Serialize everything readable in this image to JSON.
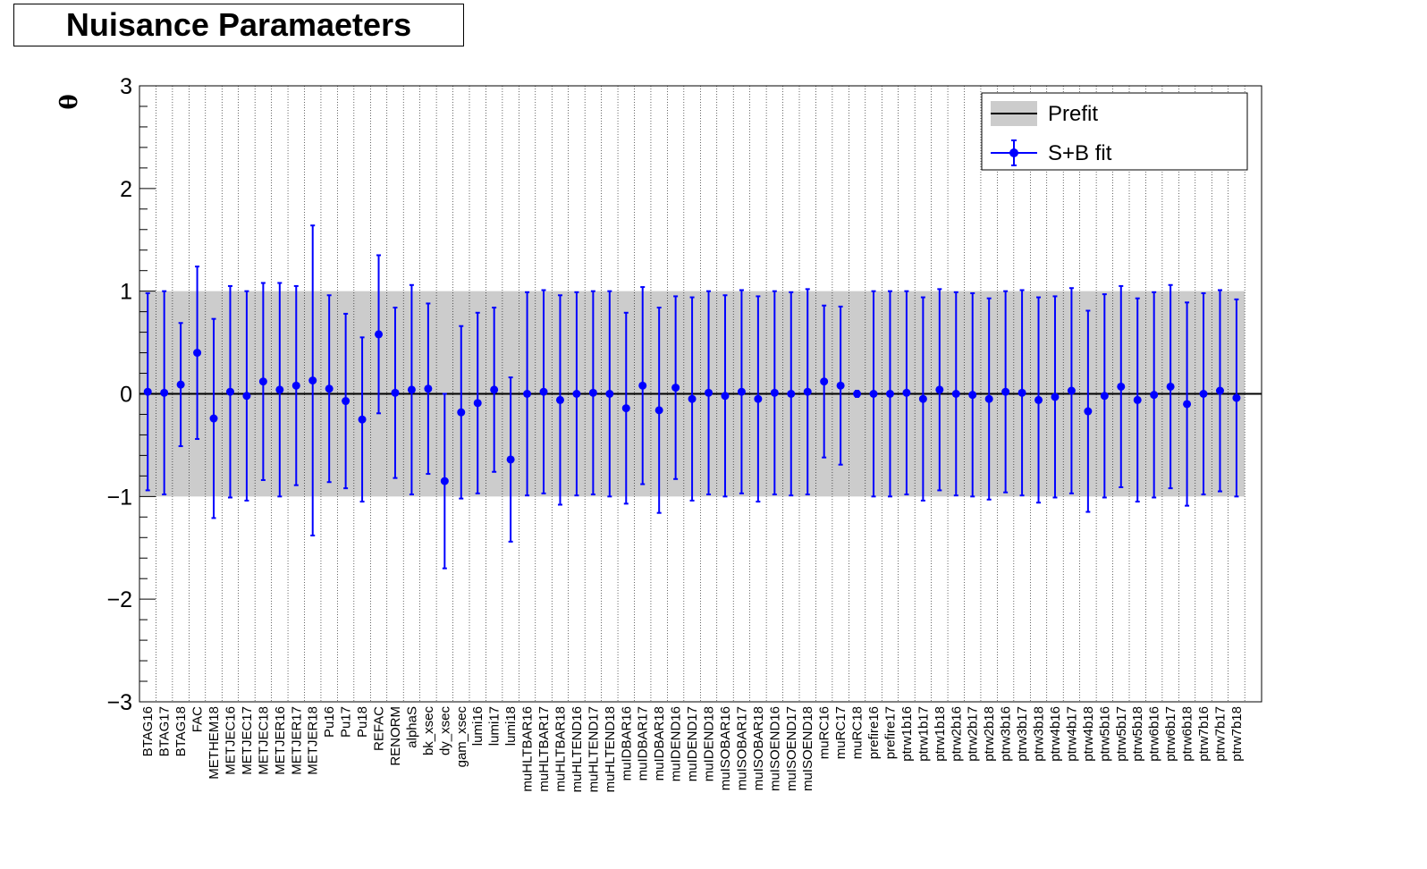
{
  "chart_data": {
    "type": "scatter",
    "title": "Nuisance Paramaeters",
    "ylabel": "θ",
    "xlabel": "",
    "ylim": [
      -3,
      3
    ],
    "yticks": [
      "−3",
      "−2",
      "−1",
      "0",
      "1",
      "2",
      "3"
    ],
    "grid": "vertical dotted",
    "legend": {
      "placement": "top-right",
      "entries": [
        "Prefit",
        "S+B fit"
      ]
    },
    "prefit_band": [
      -1,
      1
    ],
    "colors": {
      "sb_fit": "#0000ff",
      "prefit_band": "#cccccc",
      "zero_line": "#000000"
    },
    "categories": [
      "BTAG16",
      "BTAG17",
      "BTAG18",
      "FAC",
      "METHEM18",
      "METJEC16",
      "METJEC17",
      "METJEC18",
      "METJER16",
      "METJER17",
      "METJER18",
      "Pu16",
      "Pu17",
      "Pu18",
      "REFAC",
      "RENORM",
      "alphaS",
      "bk_xsec",
      "dy_xsec",
      "gam_xsec",
      "lumi16",
      "lumi17",
      "lumi18",
      "muHLTBAR16",
      "muHLTBAR17",
      "muHLTBAR18",
      "muHLTEND16",
      "muHLTEND17",
      "muHLTEND18",
      "muIDBAR16",
      "muIDBAR17",
      "muIDBAR18",
      "muIDEND16",
      "muIDEND17",
      "muIDEND18",
      "muISOBAR16",
      "muISOBAR17",
      "muISOBAR18",
      "muISOEND16",
      "muISOEND17",
      "muISOEND18",
      "muRC16",
      "muRC17",
      "muRC18",
      "prefire16",
      "prefire17",
      "ptrw1b16",
      "ptrw1b17",
      "ptrw1b18",
      "ptrw2b16",
      "ptrw2b17",
      "ptrw2b18",
      "ptrw3b16",
      "ptrw3b17",
      "ptrw3b18",
      "ptrw4b16",
      "ptrw4b17",
      "ptrw4b18",
      "ptrw5b16",
      "ptrw5b17",
      "ptrw5b18",
      "ptrw6b16",
      "ptrw6b17",
      "ptrw6b18",
      "ptrw7b16",
      "ptrw7b17",
      "ptrw7b18"
    ],
    "series": [
      {
        "name": "S+B fit",
        "values": [
          0.02,
          0.01,
          0.09,
          0.4,
          -0.24,
          0.02,
          -0.02,
          0.12,
          0.04,
          0.08,
          0.13,
          0.05,
          -0.07,
          -0.25,
          0.58,
          0.01,
          0.04,
          0.05,
          -0.85,
          -0.18,
          -0.09,
          0.04,
          -0.64,
          0.0,
          0.02,
          -0.06,
          0.0,
          0.01,
          0.0,
          -0.14,
          0.08,
          -0.16,
          0.06,
          -0.05,
          0.01,
          -0.02,
          0.02,
          -0.05,
          0.01,
          0.0,
          0.02,
          0.12,
          0.08,
          0.0,
          0.0,
          0.0,
          0.01,
          -0.05,
          0.04,
          0.0,
          -0.01,
          -0.05,
          0.02,
          0.01,
          -0.06,
          -0.03,
          0.03,
          -0.17,
          -0.02,
          0.07,
          -0.06,
          -0.01,
          0.07,
          -0.1,
          0.0,
          0.03,
          -0.04
        ],
        "errors_up": [
          0.96,
          0.99,
          0.6,
          0.84,
          0.97,
          1.03,
          1.02,
          0.96,
          1.04,
          0.97,
          1.51,
          0.91,
          0.85,
          0.8,
          0.77,
          0.83,
          1.02,
          0.83,
          0.85,
          0.84,
          0.88,
          0.8,
          0.8,
          0.99,
          0.99,
          1.02,
          0.99,
          0.99,
          1.0,
          0.93,
          0.96,
          1.0,
          0.89,
          0.99,
          0.99,
          0.98,
          0.99,
          1.0,
          0.99,
          0.99,
          1.0,
          0.74,
          0.77,
          0.03,
          1.0,
          1.0,
          0.99,
          0.99,
          0.98,
          0.99,
          0.99,
          0.98,
          0.98,
          1.0,
          1.0,
          0.98,
          1.0,
          0.98,
          0.99,
          0.98,
          0.99,
          1.0,
          0.99,
          0.99,
          0.98,
          0.98,
          0.96
        ],
        "errors_down": [
          0.96,
          0.99,
          0.6,
          0.84,
          0.97,
          1.03,
          1.02,
          0.96,
          1.04,
          0.97,
          1.51,
          0.91,
          0.85,
          0.8,
          0.77,
          0.83,
          1.02,
          0.83,
          0.85,
          0.84,
          0.88,
          0.8,
          0.8,
          0.99,
          0.99,
          1.02,
          0.99,
          0.99,
          1.0,
          0.93,
          0.96,
          1.0,
          0.89,
          0.99,
          0.99,
          0.98,
          0.99,
          1.0,
          0.99,
          0.99,
          1.0,
          0.74,
          0.77,
          0.03,
          1.0,
          1.0,
          0.99,
          0.99,
          0.98,
          0.99,
          0.99,
          0.98,
          0.98,
          1.0,
          1.0,
          0.98,
          1.0,
          0.98,
          0.99,
          0.98,
          0.99,
          1.0,
          0.99,
          0.99,
          0.98,
          0.98,
          0.96
        ]
      }
    ]
  }
}
